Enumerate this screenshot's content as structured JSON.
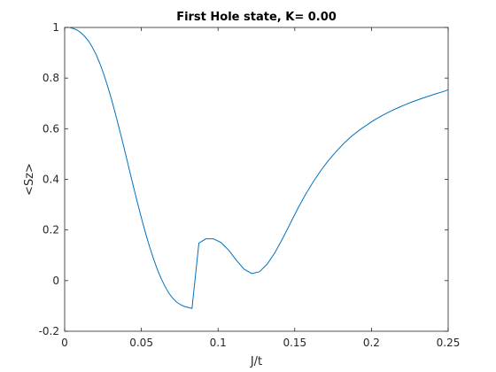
{
  "chart_data": {
    "type": "line",
    "title": "First Hole state, K= 0.00",
    "xlabel": "J/t",
    "ylabel": "<Sz>",
    "xlim": [
      0,
      0.25
    ],
    "ylim": [
      -0.2,
      1
    ],
    "x_ticks": [
      0,
      0.05,
      0.1,
      0.15,
      0.2,
      0.25
    ],
    "x_tick_labels": [
      "0",
      "0.05",
      "0.1",
      "0.15",
      "0.2",
      "0.25"
    ],
    "y_ticks": [
      -0.2,
      0,
      0.2,
      0.4,
      0.6,
      0.8,
      1
    ],
    "y_tick_labels": [
      "-0.2",
      "0",
      "0.2",
      "0.4",
      "0.6",
      "0.8",
      "1"
    ],
    "grid": false,
    "line_color": "#0072bd",
    "axis_color": "#262626",
    "series": [
      {
        "x": [
          0.003,
          0.0055,
          0.008,
          0.0105,
          0.013,
          0.0155,
          0.018,
          0.0205,
          0.023,
          0.0255,
          0.028,
          0.0305,
          0.033,
          0.0355,
          0.038,
          0.0405,
          0.043,
          0.0455,
          0.048,
          0.0505,
          0.053,
          0.0555,
          0.058,
          0.0605,
          0.063,
          0.0655,
          0.068,
          0.0705,
          0.073,
          0.0755,
          0.078,
          0.0805,
          0.083,
          0.0875,
          0.092,
          0.097,
          0.102,
          0.107,
          0.112,
          0.117,
          0.122,
          0.127,
          0.132,
          0.137,
          0.142,
          0.147,
          0.152,
          0.157,
          0.162,
          0.167,
          0.172,
          0.177,
          0.182,
          0.187,
          0.192,
          0.197,
          0.202,
          0.207,
          0.212,
          0.217,
          0.222,
          0.227,
          0.232,
          0.237,
          0.242,
          0.247,
          0.25
        ],
        "y": [
          1.0,
          0.996,
          0.99,
          0.98,
          0.965,
          0.947,
          0.922,
          0.893,
          0.857,
          0.815,
          0.768,
          0.717,
          0.661,
          0.602,
          0.542,
          0.48,
          0.417,
          0.355,
          0.295,
          0.237,
          0.182,
          0.131,
          0.085,
          0.043,
          0.007,
          -0.024,
          -0.05,
          -0.07,
          -0.085,
          -0.095,
          -0.102,
          -0.106,
          -0.11,
          0.148,
          0.165,
          0.165,
          0.15,
          0.12,
          0.08,
          0.045,
          0.028,
          0.035,
          0.065,
          0.11,
          0.165,
          0.225,
          0.285,
          0.34,
          0.39,
          0.435,
          0.475,
          0.51,
          0.542,
          0.57,
          0.594,
          0.615,
          0.635,
          0.652,
          0.668,
          0.682,
          0.695,
          0.707,
          0.718,
          0.728,
          0.738,
          0.747,
          0.754
        ]
      }
    ]
  }
}
